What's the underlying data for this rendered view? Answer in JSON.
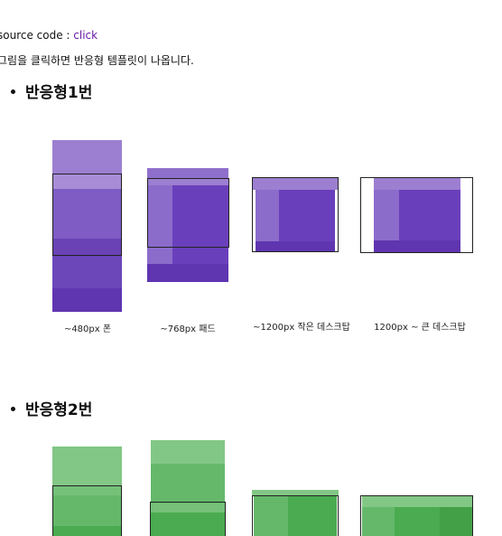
{
  "source_line": {
    "prefix": "source code : ",
    "link_label": "click"
  },
  "instruction": "그림을 클릭하면 반응형 템플릿이 나옵니다.",
  "sections": [
    {
      "title": "반응형1번",
      "captions": [
        "~480px 폰",
        "~768px 패드",
        "~1200px 작은 데스크탑",
        "1200px ~ 큰 데스크탑"
      ]
    },
    {
      "title": "반응형2번"
    }
  ],
  "colors": {
    "purple_light": "#9c7fd0",
    "purple_mid": "#7e5cc4",
    "purple_dark": "#5f35b0",
    "green_light": "#82c785",
    "green_mid": "#65b86a",
    "green_dark": "#4aab50"
  }
}
